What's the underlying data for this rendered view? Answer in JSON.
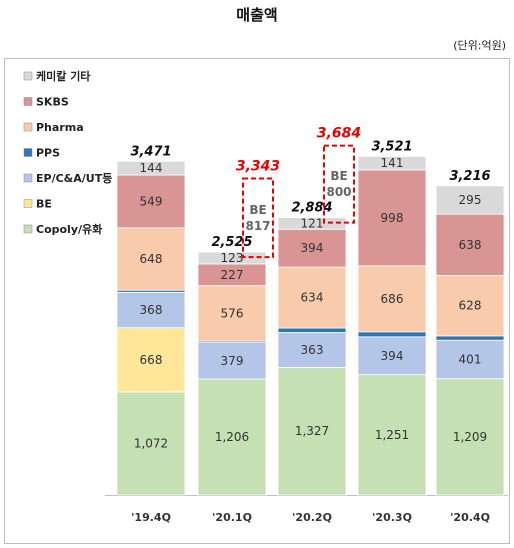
{
  "header": {
    "title": "매출액",
    "unit": "(단위:억원)"
  },
  "chart_data": {
    "type": "bar",
    "stacked": true,
    "categories": [
      "'19.4Q",
      "'20.1Q",
      "'20.2Q",
      "'20.3Q",
      "'20.4Q"
    ],
    "series": [
      {
        "name": "Copoly/유화",
        "color": "#c5e0b3",
        "values": [
          1072,
          1206,
          1327,
          1251,
          1209
        ]
      },
      {
        "name": "BE",
        "color": "#ffe699",
        "values": [
          668,
          0,
          0,
          0,
          0
        ]
      },
      {
        "name": "EP/C&A/UT등",
        "color": "#b4c6e7",
        "values": [
          368,
          379,
          363,
          394,
          401
        ]
      },
      {
        "name": "PPS",
        "color": "#2e75b6",
        "values": [
          22,
          15,
          46,
          52,
          45
        ]
      },
      {
        "name": "Pharma",
        "color": "#f8cbad",
        "values": [
          648,
          576,
          634,
          686,
          628
        ]
      },
      {
        "name": "SKBS",
        "color": "#d99594",
        "values": [
          549,
          227,
          394,
          998,
          638
        ]
      },
      {
        "name": "케미칼 기타",
        "color": "#d9d9d9",
        "values": [
          144,
          123,
          121,
          141,
          295
        ]
      }
    ],
    "segment_labels": [
      [
        "1,072",
        "1,206",
        "1,327",
        "1,251",
        "1,209"
      ],
      [
        "668",
        "",
        "",
        "",
        ""
      ],
      [
        "368",
        "379",
        "363",
        "394",
        "401"
      ],
      [
        "22",
        "15",
        "46",
        "52",
        "45"
      ],
      [
        "648",
        "576",
        "634",
        "686",
        "628"
      ],
      [
        "549",
        "227",
        "394",
        "998",
        "638"
      ],
      [
        "144",
        "123",
        "121",
        "141",
        "295"
      ]
    ],
    "totals": [
      "3,471",
      "2,525",
      "2,884",
      "3,521",
      "3,216"
    ],
    "annotations": [
      {
        "between": [
          "'20.1Q",
          "'20.2Q"
        ],
        "label": "BE",
        "value": 817,
        "value_label": "817",
        "total": "3,343"
      },
      {
        "between": [
          "'20.2Q",
          "'20.3Q"
        ],
        "label": "BE",
        "value": 800,
        "value_label": "800",
        "total": "3,684"
      }
    ],
    "legend": {
      "position": "top-left",
      "order": [
        "케미칼 기타",
        "SKBS",
        "Pharma",
        "PPS",
        "EP/C&A/UT등",
        "BE",
        "Copoly/유화"
      ]
    },
    "ylim": [
      0,
      3900
    ],
    "grid": false
  }
}
